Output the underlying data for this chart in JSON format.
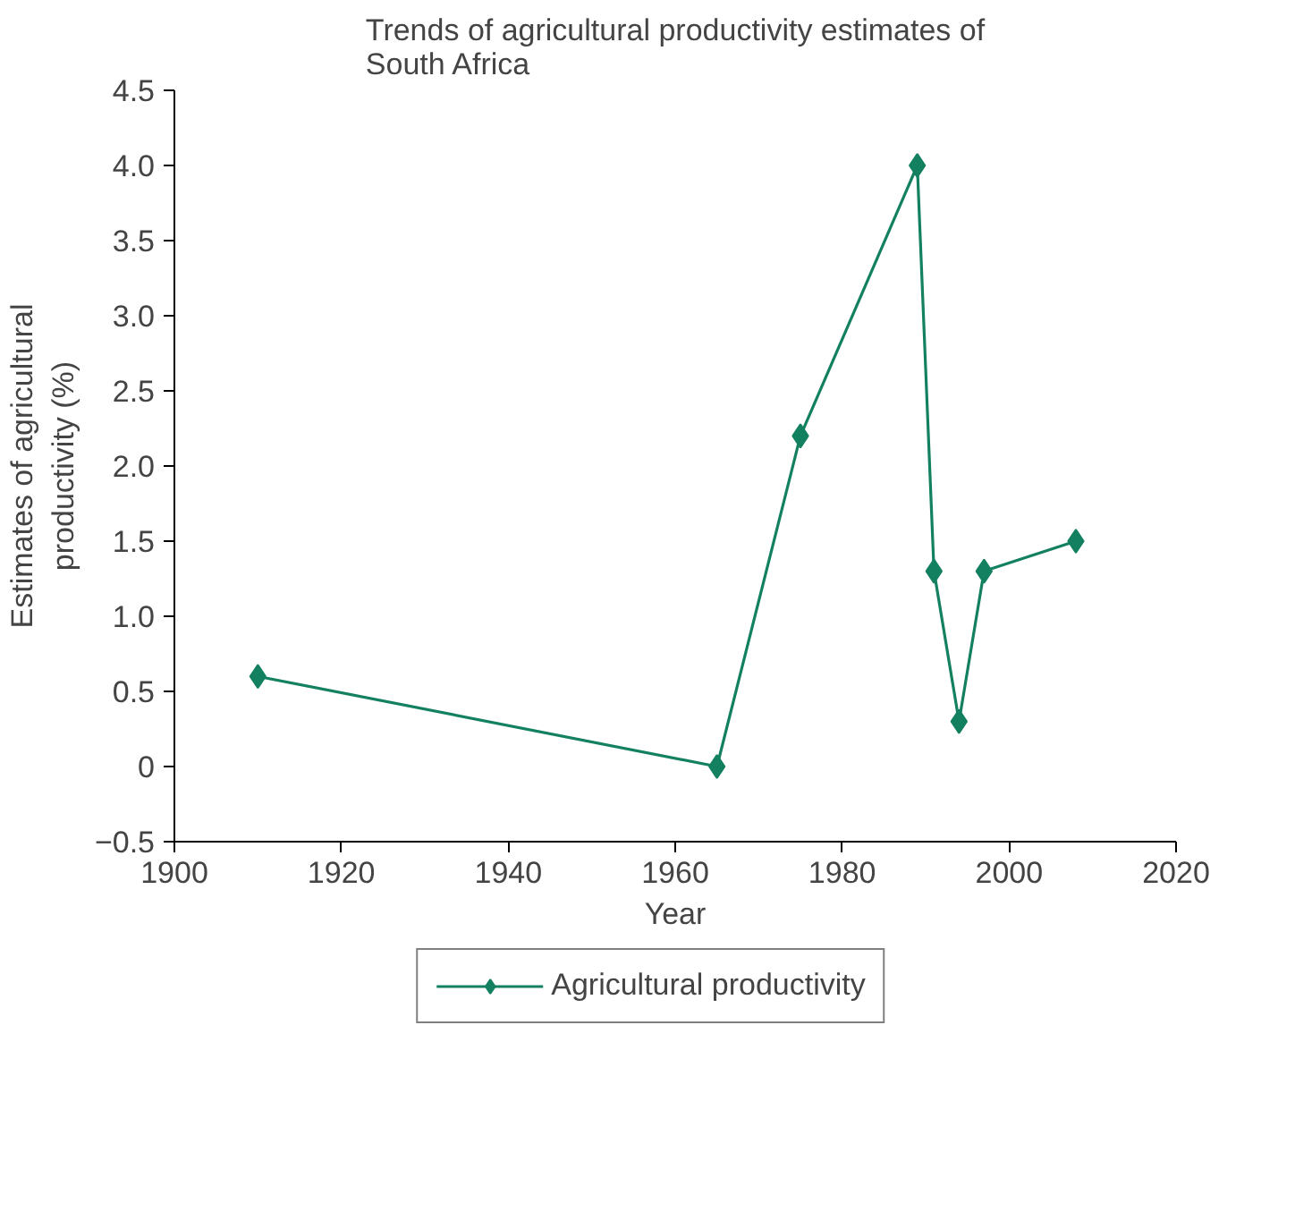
{
  "chart_data": {
    "type": "line",
    "title": "Trends of agricultural productivity estimates of\nSouth Africa",
    "xlabel": "Year",
    "ylabel": "Estimates of agricultural\nproductivity (%)",
    "x": [
      1910,
      1965,
      1975,
      1989,
      1991,
      1994,
      1997,
      2008
    ],
    "series": [
      {
        "name": "Agricultural productivity",
        "color": "#138060",
        "values": [
          0.6,
          0.0,
          2.2,
          4.0,
          1.3,
          0.3,
          1.3,
          1.5
        ]
      }
    ],
    "marker": "diamond",
    "legend": "bottom",
    "grid": false,
    "xlim": [
      1900,
      2020
    ],
    "xticks": [
      1900,
      1920,
      1940,
      1960,
      1980,
      2000,
      2020
    ],
    "ylim": [
      -0.5,
      4.5
    ],
    "yticks": [
      {
        "value": -0.5,
        "label": "−0.5"
      },
      {
        "value": 0,
        "label": "0"
      },
      {
        "value": 0.5,
        "label": "0.5"
      },
      {
        "value": 1.0,
        "label": "1.0"
      },
      {
        "value": 1.5,
        "label": "1.5"
      },
      {
        "value": 2.0,
        "label": "2.0"
      },
      {
        "value": 2.5,
        "label": "2.5"
      },
      {
        "value": 3.0,
        "label": "3.0"
      },
      {
        "value": 3.5,
        "label": "3.5"
      },
      {
        "value": 4.0,
        "label": "4.0"
      },
      {
        "value": 4.5,
        "label": "4.5"
      }
    ]
  }
}
